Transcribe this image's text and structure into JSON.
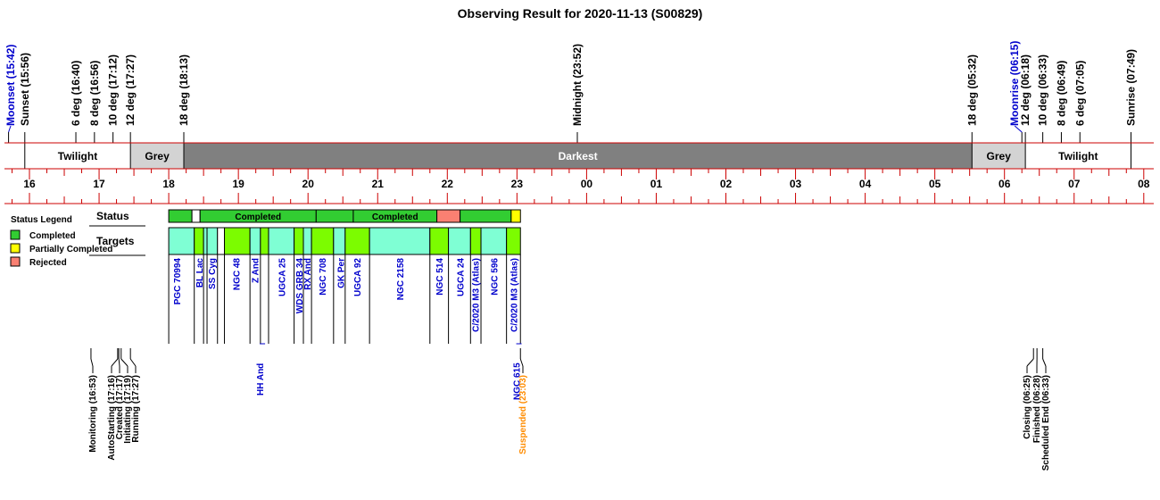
{
  "chart_data": {
    "type": "timeline",
    "title": "Observing Result for 2020-11-13 (S00829)",
    "hour_axis": {
      "start": 15.75,
      "end": 32.05,
      "ticks": [
        "16",
        "17",
        "18",
        "19",
        "20",
        "21",
        "22",
        "23",
        "00",
        "01",
        "02",
        "03",
        "04",
        "05",
        "06",
        "07",
        "08"
      ]
    },
    "top_events": [
      {
        "label": "Moonset (15:42)",
        "time": "15:42",
        "color": "#0000cc"
      },
      {
        "label": "Sunset (15:56)",
        "time": "15:56",
        "color": "#000000"
      },
      {
        "label": "6 deg (16:40)",
        "time": "16:40",
        "color": "#000000"
      },
      {
        "label": "8 deg (16:56)",
        "time": "16:56",
        "color": "#000000"
      },
      {
        "label": "10 deg (17:12)",
        "time": "17:12",
        "color": "#000000"
      },
      {
        "label": "12 deg (17:27)",
        "time": "17:27",
        "color": "#000000"
      },
      {
        "label": "18 deg (18:13)",
        "time": "18:13",
        "color": "#000000"
      },
      {
        "label": "Midnight (23:52)",
        "time": "23:52",
        "color": "#000000"
      },
      {
        "label": "18 deg (05:32)",
        "time": "05:32",
        "color": "#000000"
      },
      {
        "label": "Moonrise (06:15)",
        "time": "06:15",
        "color": "#0000cc"
      },
      {
        "label": "12 deg (06:18)",
        "time": "06:18",
        "color": "#000000"
      },
      {
        "label": "10 deg (06:33)",
        "time": "06:33",
        "color": "#000000"
      },
      {
        "label": "8 deg (06:49)",
        "time": "06:49",
        "color": "#000000"
      },
      {
        "label": "6 deg (07:05)",
        "time": "07:05",
        "color": "#000000"
      },
      {
        "label": "Sunrise (07:49)",
        "time": "07:49",
        "color": "#000000"
      }
    ],
    "sky_bands": [
      {
        "label": "Twilight",
        "start": "15:56",
        "end": "17:27",
        "fill": "#ffffff"
      },
      {
        "label": "Grey",
        "start": "17:27",
        "end": "18:13",
        "fill": "#d3d3d3"
      },
      {
        "label": "Darkest",
        "start": "18:13",
        "end": "05:32",
        "fill": "#808080"
      },
      {
        "label": "Grey",
        "start": "05:32",
        "end": "06:18",
        "fill": "#d3d3d3"
      },
      {
        "label": "Twilight",
        "start": "06:18",
        "end": "07:49",
        "fill": "#ffffff"
      }
    ],
    "row_labels": {
      "status": "Status",
      "targets": "Targets"
    },
    "status_segments": [
      {
        "start": "18:00",
        "end": "18:20",
        "status": "Completed",
        "label": ""
      },
      {
        "start": "18:20",
        "end": "18:27",
        "status": "Gap",
        "label": ""
      },
      {
        "start": "18:27",
        "end": "20:07",
        "status": "Completed",
        "label": "Completed"
      },
      {
        "start": "20:07",
        "end": "20:39",
        "status": "Completed",
        "label": ""
      },
      {
        "start": "20:39",
        "end": "21:51",
        "status": "Completed",
        "label": "Completed"
      },
      {
        "start": "21:51",
        "end": "22:11",
        "status": "Rejected",
        "label": ""
      },
      {
        "start": "22:11",
        "end": "22:55",
        "status": "Completed",
        "label": ""
      },
      {
        "start": "22:55",
        "end": "23:03",
        "status": "Partially Completed",
        "label": ""
      }
    ],
    "target_segments": [
      {
        "start": "18:00",
        "end": "18:22",
        "color": "#7fffd4"
      },
      {
        "start": "18:22",
        "end": "18:30",
        "color": "#7cfc00"
      },
      {
        "start": "18:30",
        "end": "18:33",
        "color": "#7fffd4"
      },
      {
        "start": "18:33",
        "end": "18:42",
        "color": "#7fffd4"
      },
      {
        "start": "18:42",
        "end": "18:48",
        "color": "#ffffff"
      },
      {
        "start": "18:48",
        "end": "19:10",
        "color": "#7cfc00"
      },
      {
        "start": "19:10",
        "end": "19:19",
        "color": "#7fffd4"
      },
      {
        "start": "19:19",
        "end": "19:26",
        "color": "#7cfc00"
      },
      {
        "start": "19:26",
        "end": "19:48",
        "color": "#7fffd4"
      },
      {
        "start": "19:48",
        "end": "19:56",
        "color": "#7cfc00"
      },
      {
        "start": "19:56",
        "end": "20:03",
        "color": "#7fffd4"
      },
      {
        "start": "20:03",
        "end": "20:22",
        "color": "#7cfc00"
      },
      {
        "start": "20:22",
        "end": "20:32",
        "color": "#7fffd4"
      },
      {
        "start": "20:32",
        "end": "20:53",
        "color": "#7cfc00"
      },
      {
        "start": "20:53",
        "end": "21:45",
        "color": "#7fffd4"
      },
      {
        "start": "21:45",
        "end": "22:01",
        "color": "#7cfc00"
      },
      {
        "start": "22:01",
        "end": "22:20",
        "color": "#7fffd4"
      },
      {
        "start": "22:20",
        "end": "22:29",
        "color": "#7cfc00"
      },
      {
        "start": "22:29",
        "end": "22:51",
        "color": "#7fffd4"
      },
      {
        "start": "22:51",
        "end": "23:03",
        "color": "#7cfc00"
      }
    ],
    "targets": [
      {
        "name": "PGC 70994",
        "time": "18:07"
      },
      {
        "name": "BL Lac",
        "time": "18:26"
      },
      {
        "name": "SS Cyg",
        "time": "18:37"
      },
      {
        "name": "NGC 48",
        "time": "18:58"
      },
      {
        "name": "Z And",
        "time": "19:14"
      },
      {
        "name": "HH And",
        "time": "19:23",
        "offset": true
      },
      {
        "name": "UGCA 25",
        "time": "19:37"
      },
      {
        "name": "WDS GRB 34",
        "time": "19:52"
      },
      {
        "name": "RX And",
        "time": "19:59"
      },
      {
        "name": "NGC 708",
        "time": "20:12"
      },
      {
        "name": "GK Per",
        "time": "20:28"
      },
      {
        "name": "UGCA 92",
        "time": "20:42"
      },
      {
        "name": "NGC 2158",
        "time": "21:19"
      },
      {
        "name": "NGC 514",
        "time": "21:53"
      },
      {
        "name": "UGCA 24",
        "time": "22:11"
      },
      {
        "name": "C/2020 M3 (Atlas)",
        "time": "22:24"
      },
      {
        "name": "NGC 596",
        "time": "22:40"
      },
      {
        "name": "C/2020 M3 (Atlas)",
        "time": "22:57"
      },
      {
        "name": "NGC 615",
        "time": "23:04",
        "offset": true
      }
    ],
    "events": [
      {
        "label": "Monitoring (16:53)",
        "time": "16:53",
        "color": "#000000"
      },
      {
        "label": "AutoStarting (17:16)",
        "time": "17:16",
        "color": "#000000"
      },
      {
        "label": "Created (17:17)",
        "time": "17:17",
        "color": "#000000"
      },
      {
        "label": "Initiating (17:19)",
        "time": "17:19",
        "color": "#000000"
      },
      {
        "label": "Running (17:27)",
        "time": "17:27",
        "color": "#000000"
      },
      {
        "label": "Suspended (23:03)",
        "time": "23:03",
        "color": "#ff8c00"
      },
      {
        "label": "Closing (06:25)",
        "time": "06:25",
        "color": "#000000"
      },
      {
        "label": "Finished (06:28)",
        "time": "06:28",
        "color": "#000000"
      },
      {
        "label": "Scheduled End (06:33)",
        "time": "06:33",
        "color": "#000000"
      }
    ],
    "legend": {
      "title": "Status Legend",
      "placement": "left",
      "items": [
        {
          "label": "Completed",
          "color": "#32cd32"
        },
        {
          "label": "Partially Completed",
          "color": "#ffff00"
        },
        {
          "label": "Rejected",
          "color": "#fa8072"
        }
      ]
    },
    "colors": {
      "completed": "#32cd32",
      "partial": "#ffff00",
      "rejected": "#fa8072",
      "axis": "#cc0000"
    }
  }
}
